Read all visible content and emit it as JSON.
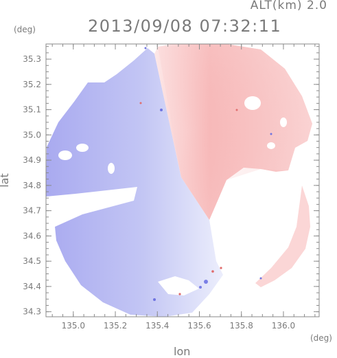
{
  "header": {
    "altitude": "ALT(km) 2.0",
    "datetime": "2013/09/08 07:32:11"
  },
  "chart_data": {
    "type": "heatmap",
    "title": "2013/09/08 07:32:11",
    "xlabel": "lon",
    "ylabel": "lat",
    "x_unit": "(deg)",
    "y_unit": "(deg)",
    "xlim": [
      134.87,
      136.17
    ],
    "ylim": [
      34.28,
      35.36
    ],
    "x_ticks": [
      135.0,
      135.2,
      135.4,
      135.6,
      135.8,
      136.0
    ],
    "x_tick_labels": [
      "135.0",
      "135.2",
      "135.4",
      "135.6",
      "135.8",
      "136.0"
    ],
    "y_ticks": [
      34.3,
      34.4,
      34.5,
      34.6,
      34.7,
      34.8,
      34.9,
      35.0,
      35.1,
      35.2,
      35.3
    ],
    "y_tick_labels": [
      "34.3",
      "34.4",
      "34.5",
      "34.6",
      "34.7",
      "34.8",
      "34.9",
      "35.0",
      "35.1",
      "35.2",
      "35.3"
    ],
    "radar_center": {
      "lon": 135.52,
      "lat": 34.82
    },
    "colors": {
      "toward": "#aab0f0",
      "away": "#f5b4b4",
      "axis": "#8a8a8a"
    }
  }
}
